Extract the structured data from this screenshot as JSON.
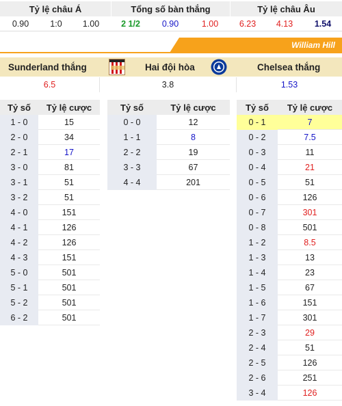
{
  "top": {
    "headers": [
      "Tỷ lệ châu Á",
      "Tổng số bàn thắng",
      "Tỷ lệ châu Âu"
    ],
    "asian": [
      "0.90",
      "1:0",
      "1.00"
    ],
    "total": [
      "2 1/2",
      "0.90",
      "1.00"
    ],
    "euro": [
      "6.23",
      "4.13",
      "1.54"
    ]
  },
  "bookmaker": "William Hill",
  "teams": {
    "home": "Sunderland thắng",
    "draw": "Hai đội hòa",
    "away": "Chelsea thắng",
    "home_odds": "6.5",
    "draw_odds": "3.8",
    "away_odds": "1.53"
  },
  "table_headers": {
    "score": "Tỷ số",
    "odds": "Tỷ lệ cược"
  },
  "home_wins": [
    {
      "score": "1 - 0",
      "odds": "15",
      "color": ""
    },
    {
      "score": "2 - 0",
      "odds": "34",
      "color": ""
    },
    {
      "score": "2 - 1",
      "odds": "17",
      "color": "blue"
    },
    {
      "score": "3 - 0",
      "odds": "81",
      "color": ""
    },
    {
      "score": "3 - 1",
      "odds": "51",
      "color": ""
    },
    {
      "score": "3 - 2",
      "odds": "51",
      "color": ""
    },
    {
      "score": "4 - 0",
      "odds": "151",
      "color": ""
    },
    {
      "score": "4 - 1",
      "odds": "126",
      "color": ""
    },
    {
      "score": "4 - 2",
      "odds": "126",
      "color": ""
    },
    {
      "score": "4 - 3",
      "odds": "151",
      "color": ""
    },
    {
      "score": "5 - 0",
      "odds": "501",
      "color": ""
    },
    {
      "score": "5 - 1",
      "odds": "501",
      "color": ""
    },
    {
      "score": "5 - 2",
      "odds": "501",
      "color": ""
    },
    {
      "score": "6 - 2",
      "odds": "501",
      "color": ""
    }
  ],
  "draws": [
    {
      "score": "0 - 0",
      "odds": "12",
      "color": ""
    },
    {
      "score": "1 - 1",
      "odds": "8",
      "color": "blue"
    },
    {
      "score": "2 - 2",
      "odds": "19",
      "color": ""
    },
    {
      "score": "3 - 3",
      "odds": "67",
      "color": ""
    },
    {
      "score": "4 - 4",
      "odds": "201",
      "color": ""
    }
  ],
  "away_wins": [
    {
      "score": "0 - 1",
      "odds": "7",
      "color": "blue",
      "highlight": true
    },
    {
      "score": "0 - 2",
      "odds": "7.5",
      "color": "blue"
    },
    {
      "score": "0 - 3",
      "odds": "11",
      "color": ""
    },
    {
      "score": "0 - 4",
      "odds": "21",
      "color": "red"
    },
    {
      "score": "0 - 5",
      "odds": "51",
      "color": ""
    },
    {
      "score": "0 - 6",
      "odds": "126",
      "color": ""
    },
    {
      "score": "0 - 7",
      "odds": "301",
      "color": "red"
    },
    {
      "score": "0 - 8",
      "odds": "501",
      "color": ""
    },
    {
      "score": "1 - 2",
      "odds": "8.5",
      "color": "red"
    },
    {
      "score": "1 - 3",
      "odds": "13",
      "color": ""
    },
    {
      "score": "1 - 4",
      "odds": "23",
      "color": ""
    },
    {
      "score": "1 - 5",
      "odds": "67",
      "color": ""
    },
    {
      "score": "1 - 6",
      "odds": "151",
      "color": ""
    },
    {
      "score": "1 - 7",
      "odds": "301",
      "color": ""
    },
    {
      "score": "2 - 3",
      "odds": "29",
      "color": "red"
    },
    {
      "score": "2 - 4",
      "odds": "51",
      "color": ""
    },
    {
      "score": "2 - 5",
      "odds": "126",
      "color": ""
    },
    {
      "score": "2 - 6",
      "odds": "251",
      "color": ""
    },
    {
      "score": "3 - 4",
      "odds": "126",
      "color": "red"
    }
  ],
  "colors": {
    "banner": "#f7a21b",
    "teams_bg": "#f3e7bd",
    "highlight": "#ffff99",
    "red": "#e0201f",
    "blue": "#1515c8",
    "green": "#1a9a2a"
  }
}
